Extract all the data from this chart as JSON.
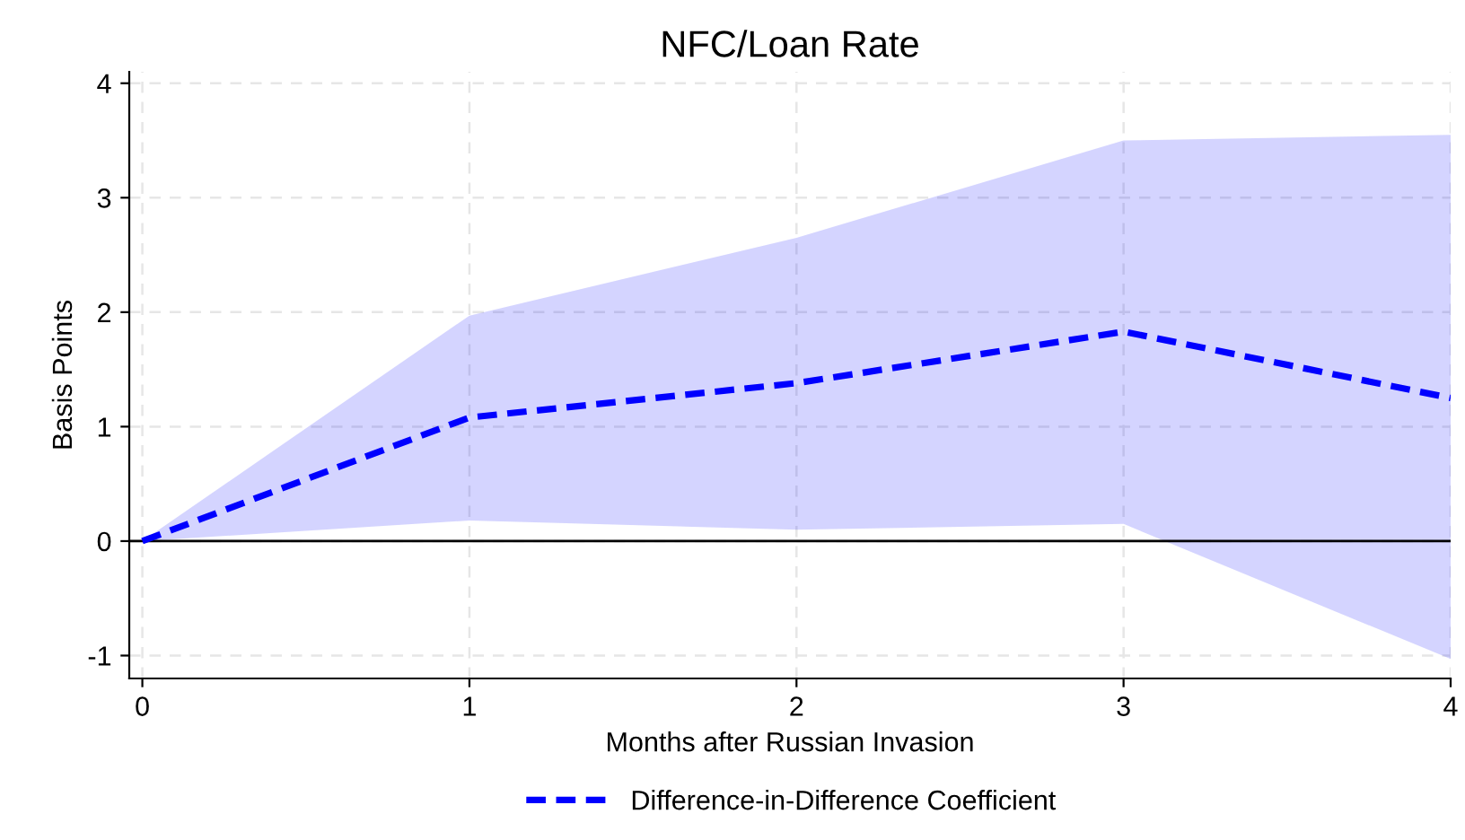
{
  "chart_data": {
    "type": "line",
    "title": "NFC/Loan Rate",
    "xlabel": "Months after Russian Invasion",
    "ylabel": "Basis Points",
    "x": [
      0,
      1,
      2,
      3,
      4
    ],
    "series": [
      {
        "name": "Difference-in-Difference Coefficient",
        "color": "#0000ff",
        "values": [
          0,
          1.08,
          1.38,
          1.83,
          1.25
        ],
        "lower": [
          0,
          0.18,
          0.1,
          0.15,
          -1.03
        ],
        "upper": [
          0,
          1.97,
          2.65,
          3.5,
          3.55
        ]
      }
    ],
    "line_style": "dashed",
    "marker": "none",
    "xlim": [
      -0.04,
      4
    ],
    "xticks": [
      0,
      1,
      2,
      3,
      4
    ],
    "ylim": [
      -1.2,
      4.1
    ],
    "yticks": [
      -1,
      0,
      1,
      2,
      3,
      4
    ],
    "ref_lines": [
      {
        "axis": "y",
        "value": 0,
        "label": null,
        "color": "#000000"
      }
    ],
    "grid": true,
    "legend": "bottom"
  }
}
